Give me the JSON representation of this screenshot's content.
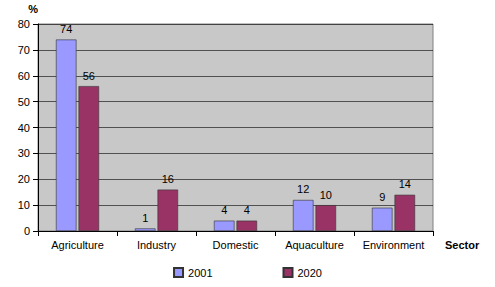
{
  "chart_data": {
    "type": "bar",
    "categories": [
      "Agriculture",
      "Industry",
      "Domestic",
      "Aquaculture",
      "Environment"
    ],
    "series": [
      {
        "name": "2001",
        "color": "#9999ff",
        "values": [
          74,
          1,
          4,
          12,
          9
        ]
      },
      {
        "name": "2020",
        "color": "#993366",
        "values": [
          56,
          16,
          4,
          10,
          14
        ]
      }
    ],
    "y_label": "%",
    "x_label": "Sector",
    "ylim": [
      0,
      80
    ],
    "yticks": [
      0,
      10,
      20,
      30,
      40,
      50,
      60,
      70,
      80
    ],
    "grid": true,
    "legend": "bottom",
    "data_labels": true
  }
}
